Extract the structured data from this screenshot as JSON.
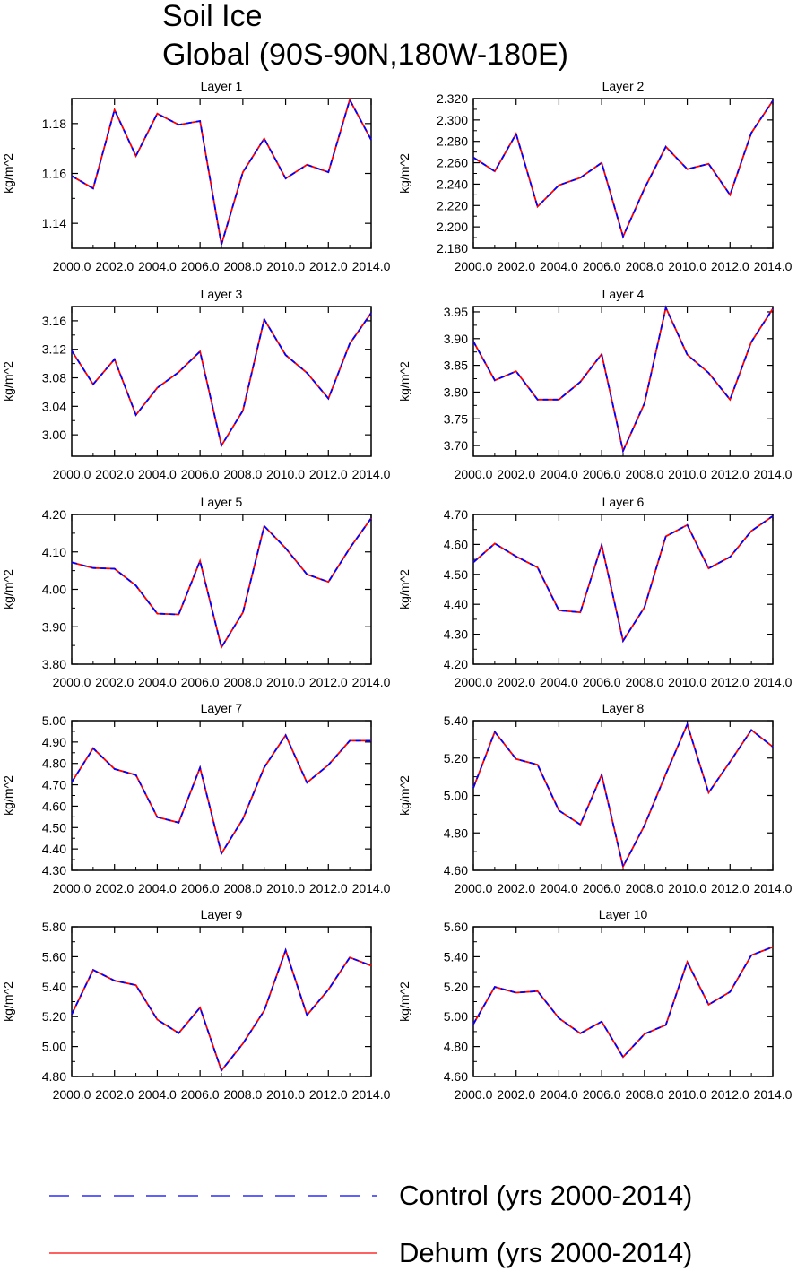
{
  "title": [
    "Soil Ice",
    "Global (90S-90N,180W-180E)"
  ],
  "chart_data": {
    "type": "line",
    "x": [
      2000,
      2001,
      2002,
      2003,
      2004,
      2005,
      2006,
      2007,
      2008,
      2009,
      2010,
      2011,
      2012,
      2013,
      2014
    ],
    "xticks": [
      "2000.0",
      "2002.0",
      "2004.0",
      "2006.0",
      "2008.0",
      "2010.0",
      "2012.0",
      "2014.0"
    ],
    "xtick_values": [
      2000,
      2002,
      2004,
      2006,
      2008,
      2010,
      2012,
      2014
    ],
    "xlim": [
      2000,
      2014
    ],
    "ylabel": "kg/m^2",
    "series_styles": [
      {
        "name": "Control (yrs 2000-2014)",
        "color": "#0000ff",
        "dash": "dashed"
      },
      {
        "name": "Dehum (yrs 2000-2014)",
        "color": "#ff0000",
        "dash": "solid"
      }
    ],
    "panels": [
      {
        "title": "Layer 1",
        "ylim": [
          1.13,
          1.19
        ],
        "yticks": [
          "1.14",
          "1.16",
          "1.18"
        ],
        "ytick_values": [
          1.14,
          1.16,
          1.18
        ],
        "values": [
          1.159,
          1.154,
          1.1855,
          1.167,
          1.184,
          1.1795,
          1.181,
          1.1315,
          1.1605,
          1.174,
          1.158,
          1.1635,
          1.1605,
          1.1895,
          1.1735
        ]
      },
      {
        "title": "Layer 2",
        "ylim": [
          2.18,
          2.32
        ],
        "yticks": [
          "2.180",
          "2.200",
          "2.220",
          "2.240",
          "2.260",
          "2.280",
          "2.300",
          "2.320"
        ],
        "ytick_values": [
          2.18,
          2.2,
          2.22,
          2.24,
          2.26,
          2.28,
          2.3,
          2.32
        ],
        "values": [
          2.265,
          2.252,
          2.287,
          2.219,
          2.239,
          2.246,
          2.26,
          2.191,
          2.236,
          2.275,
          2.254,
          2.259,
          2.23,
          2.288,
          2.318
        ]
      },
      {
        "title": "Layer 3",
        "ylim": [
          2.97,
          3.18
        ],
        "yticks": [
          "3.00",
          "3.04",
          "3.08",
          "3.12",
          "3.16"
        ],
        "ytick_values": [
          3.0,
          3.04,
          3.08,
          3.12,
          3.16
        ],
        "values": [
          3.118,
          3.071,
          3.106,
          3.028,
          3.066,
          3.088,
          3.117,
          2.985,
          3.034,
          3.162,
          3.112,
          3.087,
          3.051,
          3.128,
          3.171
        ]
      },
      {
        "title": "Layer 4",
        "ylim": [
          3.68,
          3.96
        ],
        "yticks": [
          "3.70",
          "3.75",
          "3.80",
          "3.85",
          "3.90",
          "3.95"
        ],
        "ytick_values": [
          3.7,
          3.75,
          3.8,
          3.85,
          3.9,
          3.95
        ],
        "values": [
          3.895,
          3.822,
          3.839,
          3.786,
          3.786,
          3.819,
          3.871,
          3.69,
          3.779,
          3.958,
          3.87,
          3.836,
          3.786,
          3.894,
          3.956
        ]
      },
      {
        "title": "Layer 5",
        "ylim": [
          3.8,
          4.2
        ],
        "yticks": [
          "3.80",
          "3.90",
          "4.00",
          "4.10",
          "4.20"
        ],
        "ytick_values": [
          3.8,
          3.9,
          4.0,
          4.1,
          4.2
        ],
        "values": [
          4.072,
          4.057,
          4.055,
          4.01,
          3.935,
          3.933,
          4.076,
          3.845,
          3.938,
          4.169,
          4.11,
          4.04,
          4.02,
          4.11,
          4.19
        ]
      },
      {
        "title": "Layer 6",
        "ylim": [
          4.2,
          4.7
        ],
        "yticks": [
          "4.20",
          "4.30",
          "4.40",
          "4.50",
          "4.60",
          "4.70"
        ],
        "ytick_values": [
          4.2,
          4.3,
          4.4,
          4.5,
          4.6,
          4.7
        ],
        "values": [
          4.54,
          4.603,
          4.56,
          4.523,
          4.38,
          4.373,
          4.598,
          4.278,
          4.39,
          4.627,
          4.665,
          4.52,
          4.558,
          4.645,
          4.695
        ]
      },
      {
        "title": "Layer 7",
        "ylim": [
          4.3,
          5.0
        ],
        "yticks": [
          "4.30",
          "4.40",
          "4.50",
          "4.60",
          "4.70",
          "4.80",
          "4.90",
          "5.00"
        ],
        "ytick_values": [
          4.3,
          4.4,
          4.5,
          4.6,
          4.7,
          4.8,
          4.9,
          5.0
        ],
        "values": [
          4.712,
          4.871,
          4.774,
          4.746,
          4.549,
          4.523,
          4.78,
          4.379,
          4.54,
          4.781,
          4.932,
          4.71,
          4.793,
          4.906,
          4.906
        ]
      },
      {
        "title": "Layer 8",
        "ylim": [
          4.6,
          5.4
        ],
        "yticks": [
          "4.60",
          "4.80",
          "5.00",
          "5.20",
          "5.40"
        ],
        "ytick_values": [
          4.6,
          4.8,
          5.0,
          5.2,
          5.4
        ],
        "values": [
          5.04,
          5.34,
          5.195,
          5.165,
          4.92,
          4.845,
          5.11,
          4.62,
          4.84,
          5.115,
          5.38,
          5.015,
          5.18,
          5.35,
          5.26
        ]
      },
      {
        "title": "Layer 9",
        "ylim": [
          4.8,
          5.8
        ],
        "yticks": [
          "4.80",
          "5.00",
          "5.20",
          "5.40",
          "5.60",
          "5.80"
        ],
        "ytick_values": [
          4.8,
          5.0,
          5.2,
          5.4,
          5.6,
          5.8
        ],
        "values": [
          5.215,
          5.512,
          5.44,
          5.41,
          5.18,
          5.09,
          5.26,
          4.84,
          5.02,
          5.24,
          5.643,
          5.21,
          5.38,
          5.595,
          5.54
        ]
      },
      {
        "title": "Layer 10",
        "ylim": [
          4.6,
          5.6
        ],
        "yticks": [
          "4.60",
          "4.80",
          "5.00",
          "5.20",
          "5.40",
          "5.60"
        ],
        "ytick_values": [
          4.6,
          4.8,
          5.0,
          5.2,
          5.4,
          5.6
        ],
        "values": [
          4.95,
          5.198,
          5.16,
          5.17,
          4.99,
          4.888,
          4.967,
          4.73,
          4.884,
          4.945,
          5.365,
          5.08,
          5.165,
          5.41,
          5.465
        ]
      }
    ]
  }
}
